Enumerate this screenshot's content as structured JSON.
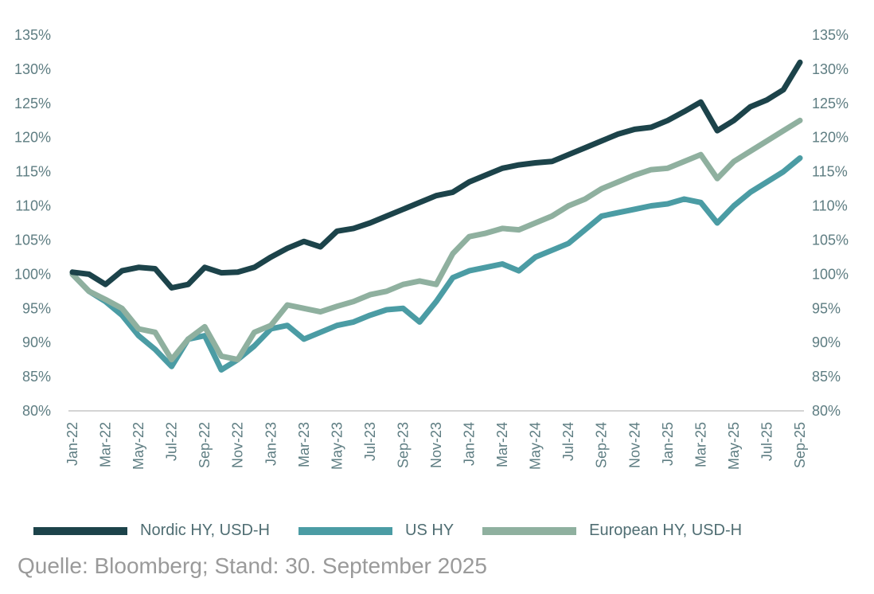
{
  "chart_data": {
    "type": "line",
    "ylim": [
      80,
      135
    ],
    "yticks": [
      "80%",
      "85%",
      "90%",
      "95%",
      "100%",
      "105%",
      "110%",
      "115%",
      "120%",
      "125%",
      "130%",
      "135%"
    ],
    "ytick_values": [
      80,
      85,
      90,
      95,
      100,
      105,
      110,
      115,
      120,
      125,
      130,
      135
    ],
    "xtick_labels": [
      "Jan-22",
      "Mar-22",
      "May-22",
      "Jul-22",
      "Sep-22",
      "Nov-22",
      "Jan-23",
      "Mar-23",
      "May-23",
      "Jul-23",
      "Sep-23",
      "Nov-23",
      "Jan-24",
      "Mar-24",
      "May-24",
      "Jul-24",
      "Sep-24",
      "Nov-24",
      "Jan-25",
      "Mar-25",
      "May-25",
      "Jul-25",
      "Sep-25"
    ],
    "x_months": [
      "Jan-22",
      "Feb-22",
      "Mar-22",
      "Apr-22",
      "May-22",
      "Jun-22",
      "Jul-22",
      "Aug-22",
      "Sep-22",
      "Oct-22",
      "Nov-22",
      "Dec-22",
      "Jan-23",
      "Feb-23",
      "Mar-23",
      "Apr-23",
      "May-23",
      "Jun-23",
      "Jul-23",
      "Aug-23",
      "Sep-23",
      "Oct-23",
      "Nov-23",
      "Dec-23",
      "Jan-24",
      "Feb-24",
      "Mar-24",
      "Apr-24",
      "May-24",
      "Jun-24",
      "Jul-24",
      "Aug-24",
      "Sep-24",
      "Oct-24",
      "Nov-24",
      "Dec-24",
      "Jan-25",
      "Feb-25",
      "Mar-25",
      "Apr-25",
      "May-25",
      "Jun-25",
      "Jul-25",
      "Aug-25",
      "Sep-25"
    ],
    "series": [
      {
        "name": "Nordic HY, USD-H",
        "color": "#1c434a",
        "values": [
          100.3,
          100,
          98.5,
          100.5,
          101,
          100.8,
          98,
          98.5,
          101,
          100.2,
          100.3,
          101,
          102.5,
          103.8,
          104.8,
          104,
          106.3,
          106.7,
          107.5,
          108.5,
          109.5,
          110.5,
          111.5,
          112,
          113.5,
          114.5,
          115.5,
          116,
          116.3,
          116.5,
          117.5,
          118.5,
          119.5,
          120.5,
          121.2,
          121.5,
          122.5,
          123.8,
          125.2,
          121,
          122.5,
          124.5,
          125.5,
          127,
          131
        ]
      },
      {
        "name": "US HY",
        "color": "#4b9ca4",
        "values": [
          100,
          97.5,
          96,
          94,
          91,
          89,
          86.5,
          90.5,
          91,
          86,
          87.5,
          89.5,
          92,
          92.5,
          90.5,
          91.5,
          92.5,
          93,
          94,
          94.8,
          95,
          93,
          96,
          99.5,
          100.5,
          101,
          101.5,
          100.5,
          102.5,
          103.5,
          104.5,
          106.5,
          108.5,
          109,
          109.5,
          110,
          110.3,
          111,
          110.5,
          107.5,
          110,
          112,
          113.5,
          115,
          117
        ]
      },
      {
        "name": "European HY, USD-H",
        "color": "#8fb09f",
        "values": [
          100,
          97.5,
          96.3,
          95,
          92,
          91.5,
          87.5,
          90.5,
          92.3,
          88,
          87.5,
          91.5,
          92.5,
          95.5,
          95,
          94.5,
          95.3,
          96,
          97,
          97.5,
          98.5,
          99,
          98.5,
          103,
          105.5,
          106,
          106.7,
          106.5,
          107.5,
          108.5,
          110,
          111,
          112.5,
          113.5,
          114.5,
          115.3,
          115.5,
          116.5,
          117.5,
          114,
          116.5,
          118,
          119.5,
          121,
          122.5
        ]
      }
    ],
    "legend": "bottom",
    "grid": false
  },
  "source": "Quelle: Bloomberg; Stand: 30. September 2025"
}
